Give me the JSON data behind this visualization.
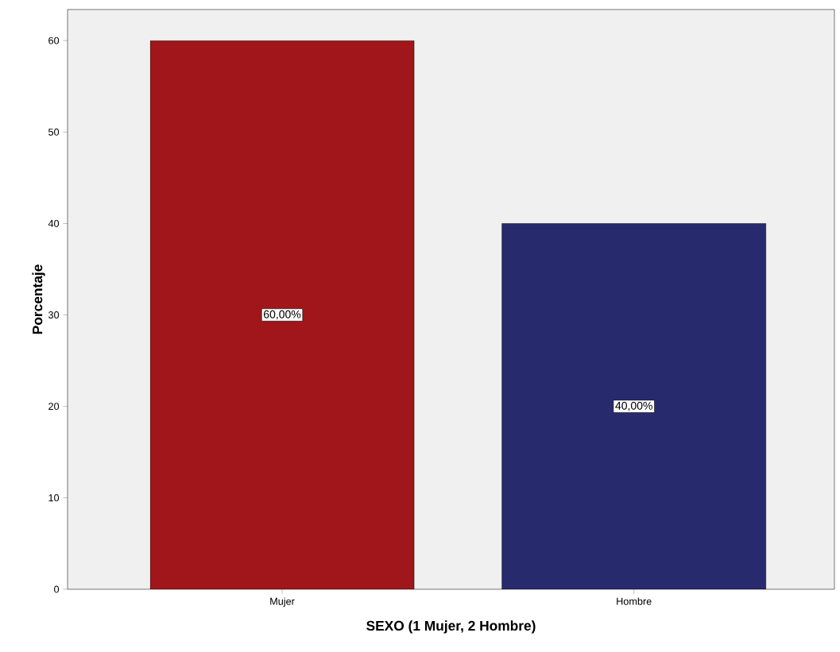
{
  "chart_data": {
    "type": "bar",
    "xlabel": "SEXO (1 Mujer, 2 Hombre)",
    "ylabel": "Porcentaje",
    "categories": [
      "Mujer",
      "Hombre"
    ],
    "values": [
      60,
      40
    ],
    "colors": [
      "#a0161a",
      "#282a6e"
    ],
    "value_labels": [
      "60,00%",
      "40,00%"
    ],
    "ylim": [
      0,
      63.4
    ],
    "yticks": [
      0,
      10,
      20,
      30,
      40,
      50,
      60
    ],
    "grid": false
  }
}
